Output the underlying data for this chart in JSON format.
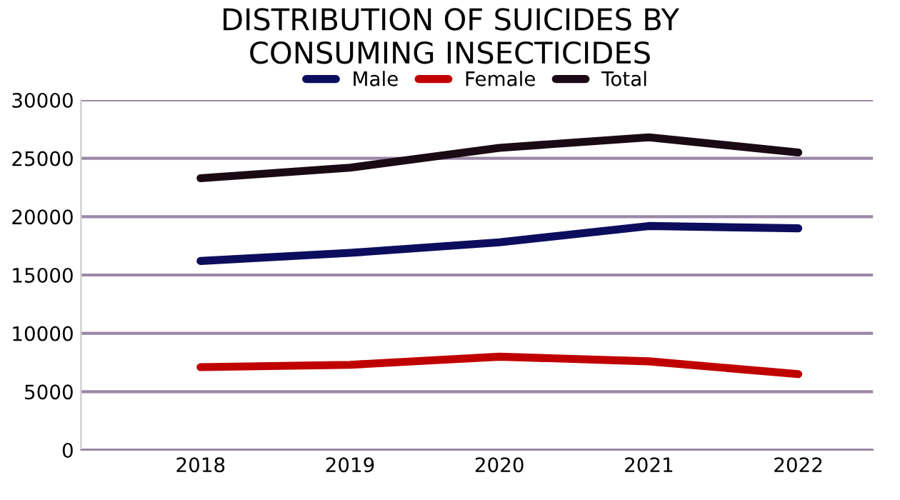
{
  "chart_data": {
    "type": "line",
    "title": "DISTRIBUTION OF SUICIDES BY\nCONSUMING INSECTICIDES",
    "categories": [
      "2018",
      "2019",
      "2020",
      "2021",
      "2022"
    ],
    "series": [
      {
        "name": "Male",
        "color": "#0d0d5e",
        "values": [
          16200,
          16900,
          17800,
          19200,
          19000
        ]
      },
      {
        "name": "Female",
        "color": "#c00000",
        "values": [
          7100,
          7300,
          8000,
          7600,
          6500
        ]
      },
      {
        "name": "Total",
        "color": "#1a0a14",
        "values": [
          23300,
          24200,
          25900,
          26800,
          25500
        ]
      }
    ],
    "ylim": [
      0,
      30000
    ],
    "yticks": [
      0,
      5000,
      10000,
      15000,
      20000,
      25000,
      30000
    ],
    "grid": "y",
    "legend": "top",
    "marker": "none",
    "line_style": "solid"
  }
}
